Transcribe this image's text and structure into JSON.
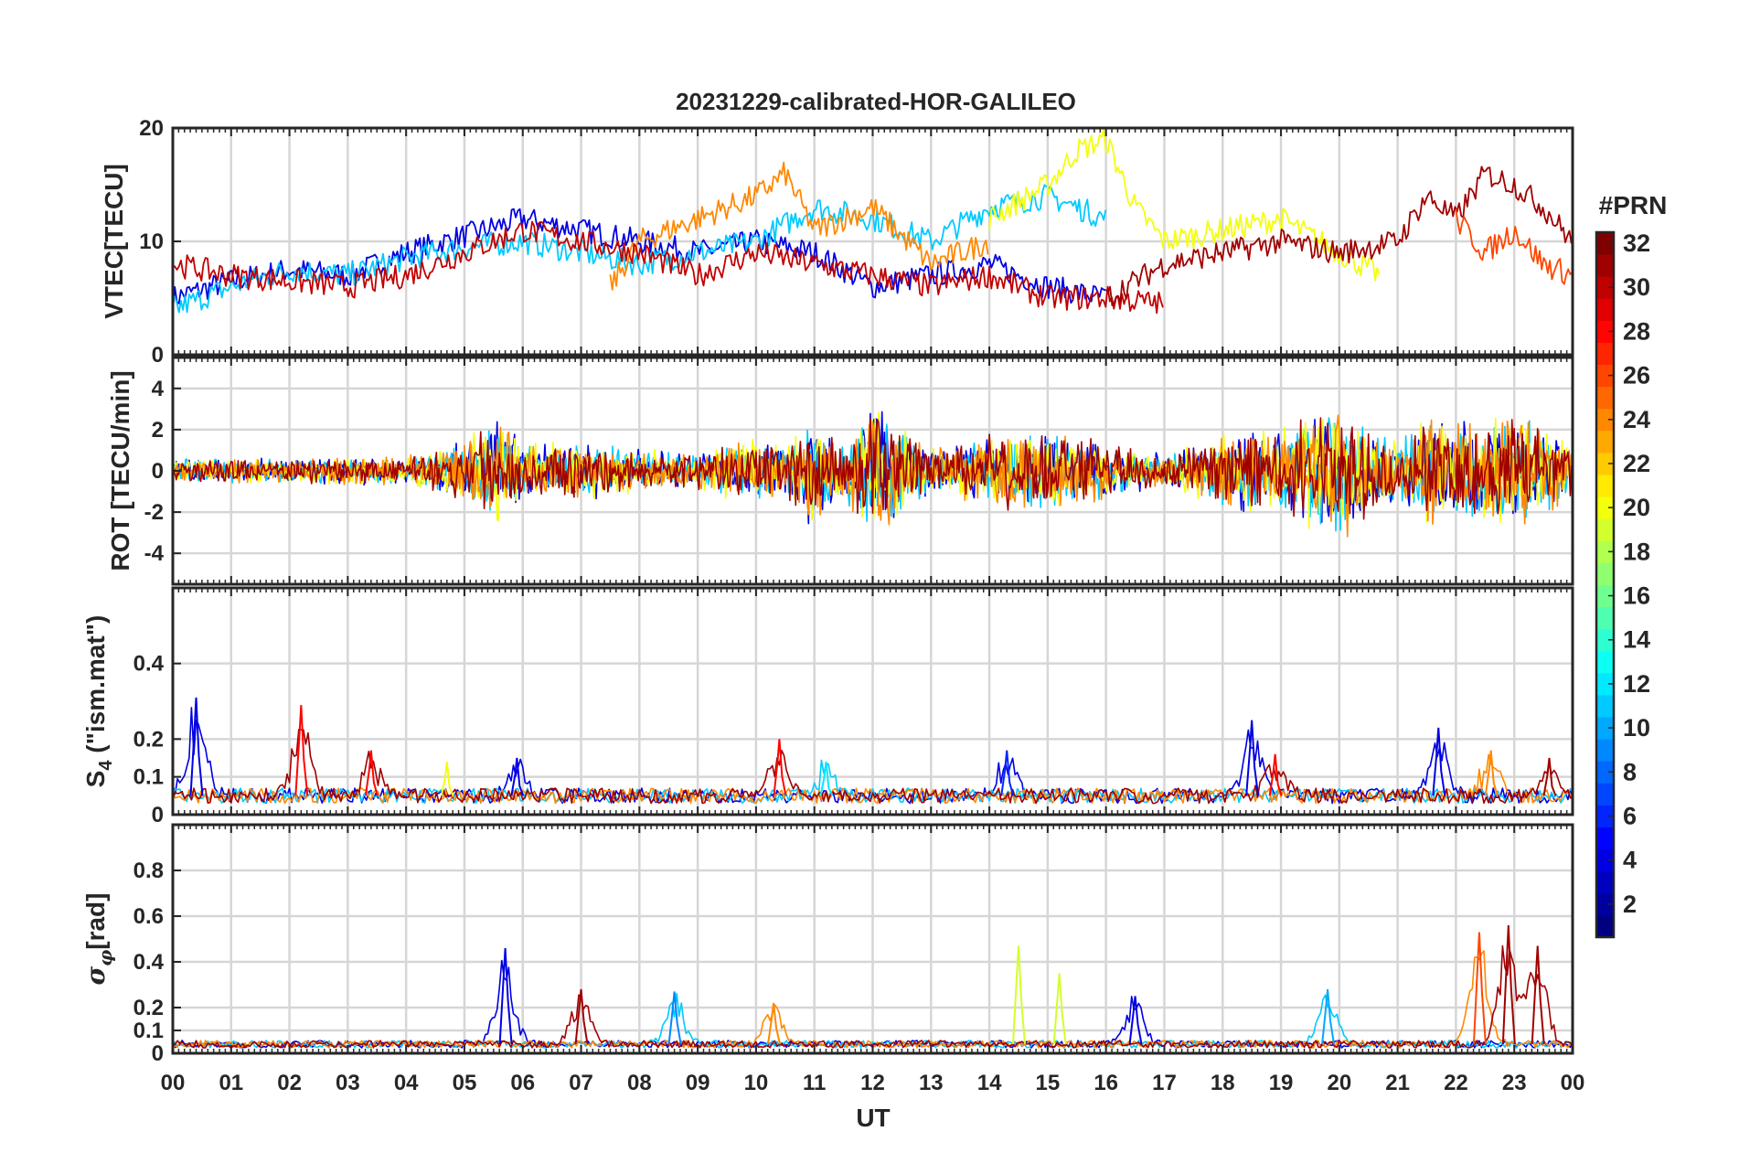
{
  "chart_data": {
    "type": "line",
    "title": "20231229-calibrated-HOR-GALILEO",
    "xlabel": "UT",
    "x_ticks": [
      "00",
      "01",
      "02",
      "03",
      "04",
      "05",
      "06",
      "07",
      "08",
      "09",
      "10",
      "11",
      "12",
      "13",
      "14",
      "15",
      "16",
      "17",
      "18",
      "19",
      "20",
      "21",
      "22",
      "23",
      "00"
    ],
    "xlim": [
      0,
      24
    ],
    "grid": true,
    "colorbar": {
      "label": "#PRN",
      "range": [
        1,
        32
      ],
      "ticks": [
        "2",
        "4",
        "6",
        "8",
        "10",
        "12",
        "14",
        "16",
        "18",
        "20",
        "22",
        "24",
        "26",
        "28",
        "30",
        "32"
      ],
      "colormap": "jet"
    },
    "panels": [
      {
        "id": "vtec",
        "ylabel": "VTEC[TECU]",
        "ylim": [
          0,
          20
        ],
        "yticks": [
          0,
          10,
          20
        ],
        "series": [
          {
            "prn": 4,
            "x": [
              0,
              1,
              2,
              3,
              4,
              5,
              6,
              7,
              8,
              9,
              10,
              11,
              12,
              13,
              14,
              15,
              16,
              17
            ],
            "y": [
              5,
              6.5,
              7.5,
              7,
              9,
              10.5,
              12,
              11,
              10,
              9,
              10,
              9,
              6,
              7,
              8,
              6,
              5,
              null
            ]
          },
          {
            "prn": 11,
            "x": [
              0,
              1,
              2,
              3,
              4,
              5,
              6,
              7,
              8,
              9,
              10,
              11,
              12,
              13,
              14,
              15,
              16
            ],
            "y": [
              4,
              6,
              7.5,
              7,
              8.5,
              9.5,
              10,
              9,
              8,
              9,
              10,
              13,
              12,
              10,
              13,
              14,
              12
            ]
          },
          {
            "prn": 20,
            "x": [
              14,
              15,
              15.5,
              16,
              16.5,
              17,
              18,
              19,
              20,
              20.7
            ],
            "y": [
              12,
              15,
              18,
              19,
              13,
              10,
              11,
              12,
              9,
              7
            ]
          },
          {
            "prn": 24,
            "x": [
              7.5,
              8,
              9,
              10,
              10.5,
              11,
              12,
              13,
              14
            ],
            "y": [
              6,
              10,
              12,
              14,
              16,
              11,
              13,
              8,
              10
            ]
          },
          {
            "prn": 30,
            "x": [
              0,
              1,
              2,
              3,
              4,
              5,
              6,
              7,
              8,
              9,
              10,
              11,
              12,
              13,
              14,
              15,
              16,
              17
            ],
            "y": [
              8,
              7,
              6.5,
              6,
              7,
              9,
              11,
              10,
              9,
              7,
              9,
              8,
              7,
              6,
              7,
              5,
              5,
              4.5
            ]
          },
          {
            "prn": 31,
            "x": [
              16,
              17,
              18,
              19,
              20,
              21,
              21.5,
              22,
              22.5,
              23,
              23.5,
              24
            ],
            "y": [
              5,
              8,
              9,
              10,
              9,
              10,
              14,
              12,
              16,
              15,
              13,
              10
            ]
          },
          {
            "prn": 26,
            "x": [
              22,
              22.5,
              23,
              23.5,
              24
            ],
            "y": [
              12,
              9,
              11,
              8,
              7
            ]
          }
        ]
      },
      {
        "id": "rot",
        "ylabel": "ROT [TECU/min]",
        "ylim": [
          -5.5,
          5.5
        ],
        "yticks": [
          -4,
          -2,
          0,
          2,
          4
        ],
        "envelope": {
          "x": [
            0,
            2,
            4,
            5,
            5.5,
            6,
            7,
            8,
            9,
            10,
            10.5,
            11,
            11.5,
            12,
            13,
            14,
            15,
            16,
            17,
            18,
            19,
            19.5,
            20,
            21,
            21.5,
            22,
            22.5,
            23,
            24
          ],
          "amp": [
            0.8,
            0.9,
            1,
            2,
            4,
            2,
            2,
            1.5,
            1.3,
            2.5,
            2,
            4,
            2,
            5,
            1.5,
            2.5,
            3,
            2,
            1.2,
            2.5,
            3,
            4,
            5,
            2,
            4,
            3,
            4,
            4,
            2
          ]
        }
      },
      {
        "id": "s4",
        "ylabel": "S4 (\"ism.mat\")",
        "ylabel_main": "S",
        "ylabel_sub": "4",
        "ylabel_rest": " (\"ism.mat\")",
        "ylim": [
          0,
          0.6
        ],
        "yticks": [
          0,
          0.1,
          0.2,
          0.4
        ],
        "baseline": 0.05,
        "peaks": [
          {
            "x": 0.4,
            "y": 0.31,
            "prn": 4
          },
          {
            "x": 2.2,
            "y": 0.29,
            "prn": 28
          },
          {
            "x": 3.4,
            "y": 0.17,
            "prn": 28
          },
          {
            "x": 4.7,
            "y": 0.14,
            "prn": 20
          },
          {
            "x": 5.9,
            "y": 0.15,
            "prn": 4
          },
          {
            "x": 10.4,
            "y": 0.2,
            "prn": 28
          },
          {
            "x": 11.2,
            "y": 0.14,
            "prn": 12
          },
          {
            "x": 14.3,
            "y": 0.17,
            "prn": 6
          },
          {
            "x": 18.5,
            "y": 0.25,
            "prn": 4
          },
          {
            "x": 18.9,
            "y": 0.16,
            "prn": 28
          },
          {
            "x": 21.7,
            "y": 0.23,
            "prn": 4
          },
          {
            "x": 22.6,
            "y": 0.17,
            "prn": 24
          },
          {
            "x": 23.6,
            "y": 0.15,
            "prn": 31
          }
        ]
      },
      {
        "id": "sigma",
        "ylabel": "σφ[rad]",
        "ylabel_main": "σ",
        "ylabel_sub": "φ",
        "ylabel_rest": "[rad]",
        "ylim": [
          0,
          1
        ],
        "yticks": [
          0,
          0.1,
          0.2,
          0.4,
          0.6,
          0.8
        ],
        "baseline": 0.04,
        "peaks": [
          {
            "x": 5.7,
            "y": 0.46,
            "prn": 4
          },
          {
            "x": 7.0,
            "y": 0.28,
            "prn": 31
          },
          {
            "x": 8.6,
            "y": 0.27,
            "prn": 9
          },
          {
            "x": 10.3,
            "y": 0.22,
            "prn": 24
          },
          {
            "x": 14.5,
            "y": 0.47,
            "prn": 19
          },
          {
            "x": 15.2,
            "y": 0.35,
            "prn": 19
          },
          {
            "x": 16.5,
            "y": 0.25,
            "prn": 4
          },
          {
            "x": 19.8,
            "y": 0.28,
            "prn": 10
          },
          {
            "x": 22.4,
            "y": 0.53,
            "prn": 26
          },
          {
            "x": 22.9,
            "y": 0.56,
            "prn": 31
          },
          {
            "x": 23.4,
            "y": 0.47,
            "prn": 31
          }
        ]
      }
    ]
  }
}
